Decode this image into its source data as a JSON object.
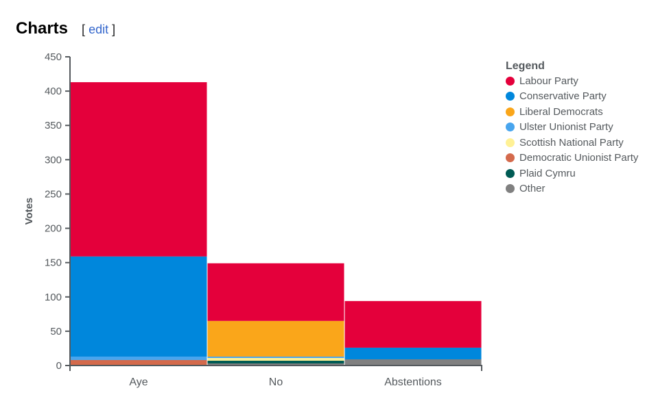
{
  "section": {
    "title": "Charts",
    "edit_open": "[",
    "edit_link": "edit",
    "edit_close": "]"
  },
  "chart_data": {
    "type": "bar",
    "stacked": true,
    "categories": [
      "Aye",
      "No",
      "Abstentions"
    ],
    "ylabel": "Votes",
    "xlabel": "",
    "ylim": [
      0,
      450
    ],
    "yticks": [
      0,
      50,
      100,
      150,
      200,
      250,
      300,
      350,
      400,
      450
    ],
    "grid": false,
    "legend_position": "right",
    "legend_title": "Legend",
    "series": [
      {
        "name": "Labour Party",
        "color": "#e4003b",
        "values": [
          254,
          84,
          68
        ]
      },
      {
        "name": "Conservative Party",
        "color": "#0087dc",
        "values": [
          146,
          0,
          17
        ]
      },
      {
        "name": "Liberal Democrats",
        "color": "#faa61a",
        "values": [
          0,
          52,
          0
        ]
      },
      {
        "name": "Ulster Unionist Party",
        "color": "#48a5ee",
        "values": [
          5,
          2,
          0
        ]
      },
      {
        "name": "Scottish National Party",
        "color": "#fff195",
        "values": [
          0,
          4,
          0
        ]
      },
      {
        "name": "Democratic Unionist Party",
        "color": "#d46a4c",
        "values": [
          7,
          0,
          0
        ]
      },
      {
        "name": "Plaid Cymru",
        "color": "#005b54",
        "values": [
          0,
          4,
          0
        ]
      },
      {
        "name": "Other",
        "color": "#808080",
        "values": [
          1,
          3,
          9
        ]
      }
    ]
  }
}
